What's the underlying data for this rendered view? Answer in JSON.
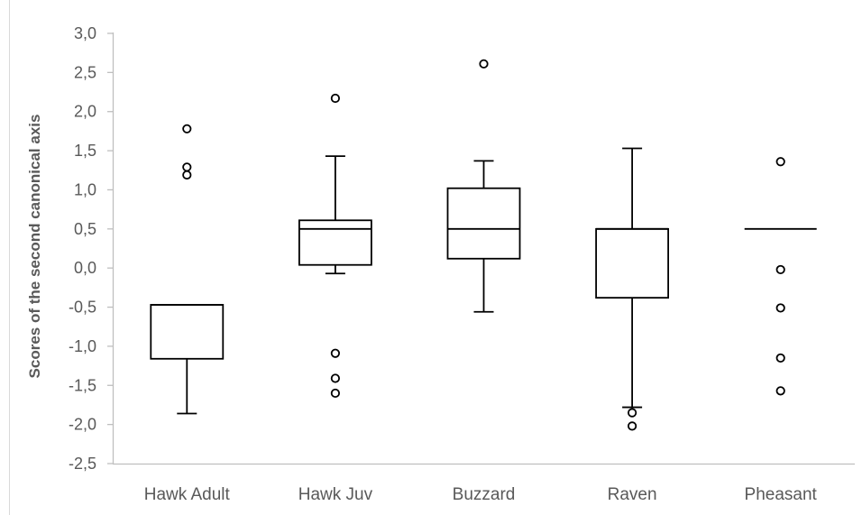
{
  "chart_data": {
    "type": "box",
    "ylabel": "Scores of the second canonical axis",
    "categories": [
      "Hawk Adult",
      "Hawk Juv",
      "Buzzard",
      "Raven",
      "Pheasant"
    ],
    "ylim": [
      -2.5,
      3.0
    ],
    "y_ticks": [
      3.0,
      2.5,
      2.0,
      1.5,
      1.0,
      0.5,
      0.0,
      -0.5,
      -1.0,
      -1.5,
      -2.0,
      -2.5
    ],
    "y_tick_labels": [
      "3,0",
      "2,5",
      "2,0",
      "1,5",
      "1,0",
      "0,5",
      "0,0",
      "-0,5",
      "-1,0",
      "-1,5",
      "-2,0",
      "-2,5"
    ],
    "grid": false,
    "boxes": [
      {
        "whisker_low": -1.86,
        "q1": -1.16,
        "median": -0.47,
        "q3": -0.47,
        "whisker_high": -0.47,
        "outliers": [
          1.19,
          1.29,
          1.78
        ]
      },
      {
        "whisker_low": -0.07,
        "q1": 0.04,
        "median": 0.5,
        "q3": 0.61,
        "whisker_high": 1.43,
        "outliers": [
          -1.6,
          -1.41,
          -1.09,
          2.17
        ]
      },
      {
        "whisker_low": -0.56,
        "q1": 0.12,
        "median": 0.5,
        "q3": 1.02,
        "whisker_high": 1.37,
        "outliers": [
          2.61
        ]
      },
      {
        "whisker_low": -1.78,
        "q1": -0.38,
        "median": 0.5,
        "q3": 0.5,
        "whisker_high": 1.53,
        "outliers": [
          -2.02,
          -1.85
        ]
      },
      {
        "whisker_low": 0.5,
        "q1": 0.5,
        "median": 0.5,
        "q3": 0.5,
        "whisker_high": 0.5,
        "outliers": [
          -1.57,
          -1.15,
          -0.51,
          -0.02,
          1.36
        ]
      }
    ]
  },
  "colors": {
    "box_stroke": "#000000",
    "box_fill": "#ffffff",
    "axis": "#bfbfbf",
    "text": "#595959"
  }
}
